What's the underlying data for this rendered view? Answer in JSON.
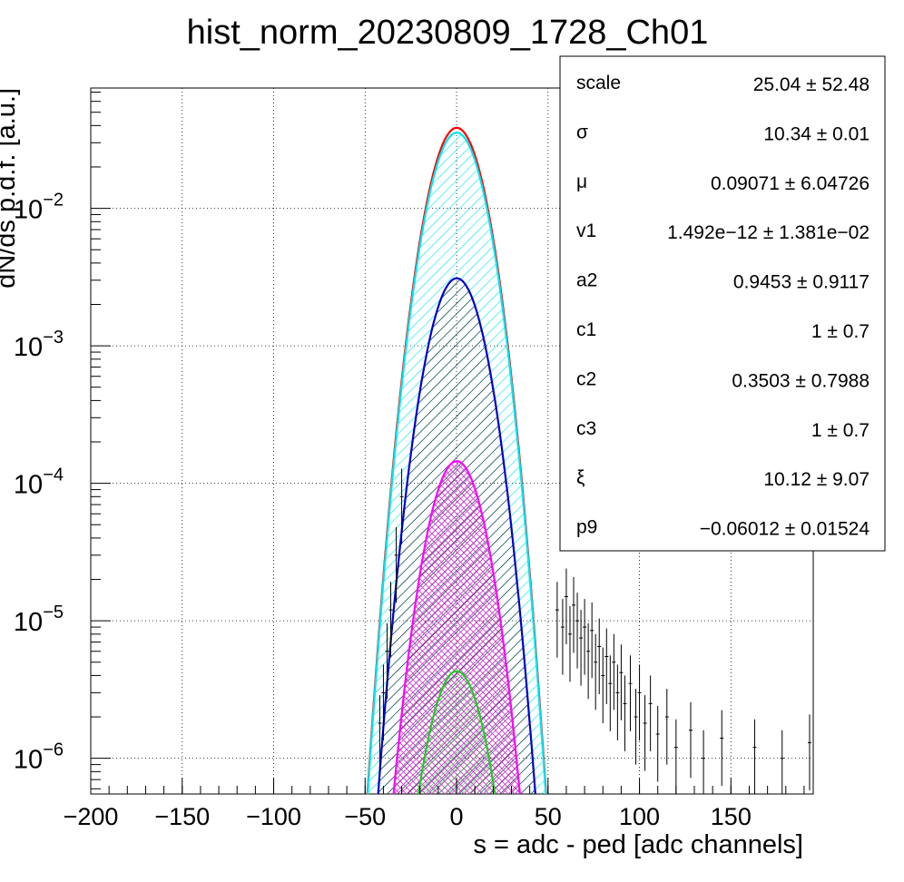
{
  "chart_data": {
    "type": "line",
    "title": "hist_norm_20230809_1728_Ch01",
    "xlabel": "s = adc - ped [adc channels]",
    "ylabel": "dN/ds p.d.f. [a.u.]",
    "xlim": [
      -200,
      195
    ],
    "ylim": [
      5.5e-07,
      0.075
    ],
    "yscale": "log",
    "grid": true,
    "x_ticks": [
      {
        "value": -200,
        "label": "−200"
      },
      {
        "value": -150,
        "label": "−150"
      },
      {
        "value": -100,
        "label": "−100"
      },
      {
        "value": -50,
        "label": "−50"
      },
      {
        "value": 0,
        "label": "0"
      },
      {
        "value": 50,
        "label": "50"
      },
      {
        "value": 100,
        "label": "100"
      },
      {
        "value": 150,
        "label": "150"
      }
    ],
    "y_ticks": [
      {
        "value": 0.01,
        "base": "10",
        "exp": "−2"
      },
      {
        "value": 0.001,
        "base": "10",
        "exp": "−3"
      },
      {
        "value": 0.0001,
        "base": "10",
        "exp": "−4"
      },
      {
        "value": 1e-05,
        "base": "10",
        "exp": "−5"
      },
      {
        "value": 1e-06,
        "base": "10",
        "exp": "−6"
      }
    ],
    "series": [
      {
        "color": "#ff0000",
        "shape": "gaussian",
        "mu": 0.09,
        "sigma": 10.34,
        "peak": 0.0385
      },
      {
        "color": "#00e5ee",
        "shape": "gaussian",
        "mu": 0.09,
        "sigma": 10.34,
        "peak": 0.0355,
        "fill": "cyan-hatch"
      },
      {
        "color": "#0000cc",
        "shape": "gaussian",
        "mu": 0.09,
        "sigma": 10.34,
        "peak": 0.0031,
        "fill": "black-hatch"
      },
      {
        "color": "#ff00ff",
        "shape": "gaussian",
        "mu": 0.09,
        "sigma": 10.34,
        "peak": 0.000145,
        "fill": "magenta-crosshatch"
      },
      {
        "color": "#22cc22",
        "shape": "gaussian",
        "mu": 0.09,
        "sigma": 10.34,
        "peak": 4.3e-06,
        "fill": "green-hatch"
      }
    ],
    "data_points": [
      {
        "x": 55,
        "y": 1.2e-05
      },
      {
        "x": 58,
        "y": 9e-06
      },
      {
        "x": 60,
        "y": 1.5e-05
      },
      {
        "x": 62,
        "y": 8e-06
      },
      {
        "x": 64,
        "y": 1.3e-05
      },
      {
        "x": 66,
        "y": 1e-05
      },
      {
        "x": 68,
        "y": 7.5e-06
      },
      {
        "x": 70,
        "y": 9e-06
      },
      {
        "x": 72,
        "y": 6e-06
      },
      {
        "x": 74,
        "y": 8.5e-06
      },
      {
        "x": 76,
        "y": 5e-06
      },
      {
        "x": 78,
        "y": 6.5e-06
      },
      {
        "x": 80,
        "y": 4e-06
      },
      {
        "x": 82,
        "y": 5.5e-06
      },
      {
        "x": 84,
        "y": 3.5e-06
      },
      {
        "x": 86,
        "y": 5e-06
      },
      {
        "x": 88,
        "y": 3e-06
      },
      {
        "x": 90,
        "y": 4.2e-06
      },
      {
        "x": 92,
        "y": 2.5e-06
      },
      {
        "x": 95,
        "y": 3.5e-06
      },
      {
        "x": 98,
        "y": 2e-06
      },
      {
        "x": 100,
        "y": 3e-06
      },
      {
        "x": 103,
        "y": 1.8e-06
      },
      {
        "x": 106,
        "y": 2.5e-06
      },
      {
        "x": 110,
        "y": 1.5e-06
      },
      {
        "x": 115,
        "y": 2e-06
      },
      {
        "x": 120,
        "y": 1.2e-06
      },
      {
        "x": 128,
        "y": 1.6e-06
      },
      {
        "x": 135,
        "y": 1e-06
      },
      {
        "x": 145,
        "y": 1.4e-06
      },
      {
        "x": 163,
        "y": 1.2e-06
      },
      {
        "x": 178,
        "y": 1e-06
      },
      {
        "x": 193,
        "y": 1.3e-06
      },
      {
        "x": -30,
        "y": 8e-05
      },
      {
        "x": -33,
        "y": 3e-05
      },
      {
        "x": -36,
        "y": 1.2e-05
      },
      {
        "x": -38,
        "y": 6e-06
      },
      {
        "x": -40,
        "y": 3e-06
      },
      {
        "x": -42,
        "y": 1.8e-06
      }
    ]
  },
  "stats_box": {
    "rows": [
      {
        "name": "scale",
        "value": "25.04 ± 52.48"
      },
      {
        "name": "σ",
        "value": "10.34 ± 0.01"
      },
      {
        "name": "μ",
        "value": "0.09071 ± 6.04726"
      },
      {
        "name": "v1",
        "value": "1.492e−12 ± 1.381e−02"
      },
      {
        "name": "a2",
        "value": "0.9453 ± 0.9117"
      },
      {
        "name": "c1",
        "value": "1 ± 0.7"
      },
      {
        "name": "c2",
        "value": "0.3503 ± 0.7988"
      },
      {
        "name": "c3",
        "value": "1 ± 0.7"
      },
      {
        "name": "ξ",
        "value": "10.12 ± 9.07"
      },
      {
        "name": "p9",
        "value": "−0.06012 ± 0.01524"
      }
    ]
  }
}
